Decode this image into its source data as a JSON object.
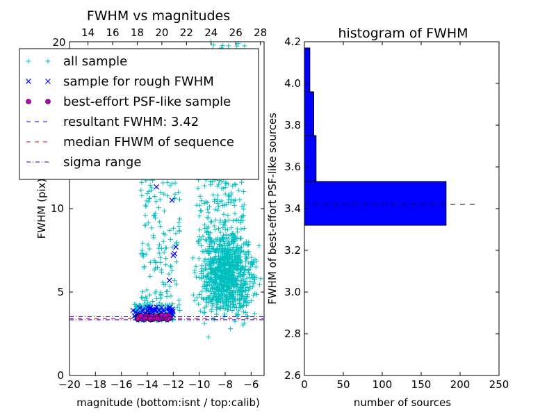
{
  "chart_data": [
    {
      "type": "scatter",
      "title": "FWHM vs magnitudes",
      "xlabel": "magnitude (bottom:isnt / top:calib)",
      "ylabel": "FWHM (pix)",
      "xlim": [
        -20,
        -5
      ],
      "ylim": [
        0,
        20
      ],
      "xticks": [
        -20,
        -18,
        -16,
        -14,
        -12,
        -10,
        -8,
        -6
      ],
      "xticklabels": [
        "−20",
        "−18",
        "−16",
        "−14",
        "−12",
        "−10",
        "−8",
        "−6"
      ],
      "yticks": [
        0,
        5,
        10
      ],
      "yticklabels": [
        "0",
        "5",
        "10"
      ],
      "top_axis": {
        "xlim": [
          12.5,
          28.3
        ],
        "ticks": [
          14,
          16,
          18,
          20,
          22,
          24,
          26,
          28
        ],
        "ticklabels": [
          "14",
          "16",
          "18",
          "20",
          "22",
          "24",
          "26",
          "28"
        ]
      },
      "top_corner_label": "20",
      "legend": {
        "placement": "top-left",
        "entries": [
          {
            "label": "all sample",
            "marker": "plus",
            "color": "#00bfbf"
          },
          {
            "label": "sample for rough FWHM",
            "marker": "x",
            "color": "#0000ff"
          },
          {
            "label": "best-effort PSF-like sample",
            "marker": "circle",
            "color": "#bf00bf"
          },
          {
            "label": "resultant FWHM: 3.42",
            "marker": "dashed",
            "color": "#0000ff"
          },
          {
            "label": "median FHWM of sequence",
            "marker": "dashed",
            "color": "#ff0000"
          },
          {
            "label": "sigma range",
            "marker": "dashdot",
            "color": "#0000ff"
          }
        ]
      },
      "series": [
        {
          "name": "all sample",
          "color": "#00bfbf",
          "marker": "plus",
          "clusters": [
            {
              "x_range": [
                -10.5,
                -5.2
              ],
              "y_range": [
                3.0,
                9.0
              ],
              "count": 900
            },
            {
              "x_range": [
                -10.2,
                -6.5
              ],
              "y_range": [
                8.0,
                20.0
              ],
              "count": 350
            },
            {
              "x_range": [
                -14.5,
                -11.5
              ],
              "y_range": [
                4.0,
                15.0
              ],
              "count": 180
            },
            {
              "x_range": [
                -15.0,
                -12.0
              ],
              "y_range": [
                3.3,
                4.3
              ],
              "count": 150
            }
          ],
          "points": [
            {
              "x": -9.3,
              "y": 2.3
            },
            {
              "x": -7.6,
              "y": 2.8
            },
            {
              "x": -14.0,
              "y": 10.9
            },
            {
              "x": -13.5,
              "y": 12.5
            },
            {
              "x": -12.9,
              "y": 6.2
            },
            {
              "x": -11.5,
              "y": 3.9
            },
            {
              "x": -8.9,
              "y": 19.8
            },
            {
              "x": -9.8,
              "y": 19.5
            },
            {
              "x": -13.0,
              "y": 14.9
            }
          ]
        },
        {
          "name": "sample for rough FWHM",
          "color": "#0000ff",
          "marker": "x",
          "points": [
            {
              "x": -13.3,
              "y": 11.3
            },
            {
              "x": -12.1,
              "y": 10.5
            },
            {
              "x": -11.8,
              "y": 7.7
            },
            {
              "x": -11.9,
              "y": 7.3
            },
            {
              "x": -12.0,
              "y": 7.2
            },
            {
              "x": -12.3,
              "y": 5.7
            },
            {
              "x": -15.1,
              "y": 3.9
            },
            {
              "x": -14.9,
              "y": 3.8
            },
            {
              "x": -13.8,
              "y": 4.0
            },
            {
              "x": -13.3,
              "y": 4.1
            },
            {
              "x": -12.8,
              "y": 3.9
            },
            {
              "x": -14.2,
              "y": 3.7
            },
            {
              "x": -13.6,
              "y": 3.8
            },
            {
              "x": -12.5,
              "y": 3.7
            },
            {
              "x": -12.2,
              "y": 3.8
            },
            {
              "x": -14.6,
              "y": 3.6
            },
            {
              "x": -13.1,
              "y": 3.7
            },
            {
              "x": -13.9,
              "y": 3.6
            }
          ]
        },
        {
          "name": "best-effort PSF-like sample",
          "color": "#bf00bf",
          "marker": "circle",
          "x_range": [
            -14.8,
            -12.2
          ],
          "y_range": [
            3.35,
            3.6
          ],
          "count": 70
        }
      ],
      "hlines": [
        {
          "name": "resultant FWHM",
          "y": 3.42,
          "style": "dashed",
          "color": "#0000ff"
        },
        {
          "name": "median FHWM of sequence",
          "y": 3.42,
          "style": "dashed",
          "color": "#ff0000"
        },
        {
          "name": "sigma range upper",
          "y": 3.52,
          "style": "dashdot",
          "color": "#0000ff"
        },
        {
          "name": "sigma range lower",
          "y": 3.34,
          "style": "dashdot",
          "color": "#0000ff"
        }
      ]
    },
    {
      "type": "bar",
      "orientation": "horizontal",
      "title": "histogram of FWHM",
      "xlabel": "number of sources",
      "ylabel": "FWHM of best-effort PSF-like sources",
      "xlim": [
        0,
        250
      ],
      "ylim": [
        2.6,
        4.2
      ],
      "xticks": [
        0,
        50,
        100,
        150,
        200,
        250
      ],
      "xticklabels": [
        "0",
        "50",
        "100",
        "150",
        "200",
        "250"
      ],
      "yticks": [
        2.6,
        2.8,
        3.0,
        3.2,
        3.4,
        3.6,
        3.8,
        4.0,
        4.2
      ],
      "yticklabels": [
        "2.6",
        "2.8",
        "3.0",
        "3.2",
        "3.4",
        "3.6",
        "3.8",
        "4.0",
        "4.2"
      ],
      "bar_color": "#0000ff",
      "bins": [
        {
          "y_low": 3.32,
          "y_high": 3.53,
          "count": 182
        },
        {
          "y_low": 3.53,
          "y_high": 3.75,
          "count": 15
        },
        {
          "y_low": 3.75,
          "y_high": 3.96,
          "count": 12
        },
        {
          "y_low": 3.96,
          "y_high": 4.17,
          "count": 7
        }
      ],
      "reference_line": {
        "y": 3.42,
        "x_end": 220,
        "style": "dashed",
        "color": "#000000"
      }
    }
  ]
}
